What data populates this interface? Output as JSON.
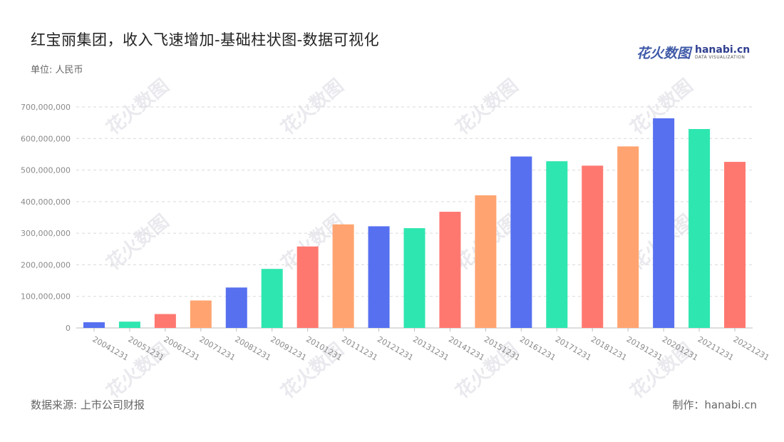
{
  "title": "红宝丽集团，收入飞速增加-基础柱状图-数据可视化",
  "unit_label": "单位: 人民币",
  "logo": {
    "cn": "花火数图",
    "en": "hanabi.cn",
    "sub": "DATA VISUALIZATION"
  },
  "footer": {
    "source": "数据来源: 上市公司财报",
    "maker": "制作：hanabi.cn"
  },
  "watermark": "花火数图",
  "colors": [
    "#5670f0",
    "#2ee6b0",
    "#ff7870",
    "#ffa470"
  ],
  "chart_data": {
    "type": "bar",
    "categories": [
      "20041231",
      "20051231",
      "20061231",
      "20071231",
      "20081231",
      "20091231",
      "20101231",
      "20111231",
      "20121231",
      "20131231",
      "20141231",
      "20151231",
      "20161231",
      "20171231",
      "20181231",
      "20191231",
      "20201231",
      "20211231",
      "20221231"
    ],
    "values": [
      18000000,
      20000000,
      44000000,
      87000000,
      128000000,
      187000000,
      258000000,
      328000000,
      322000000,
      316000000,
      368000000,
      420000000,
      543000000,
      528000000,
      514000000,
      575000000,
      664000000,
      630000000,
      526000000
    ],
    "yticks": [
      "0",
      "100,000,000",
      "200,000,000",
      "300,000,000",
      "400,000,000",
      "500,000,000",
      "600,000,000",
      "700,000,000"
    ],
    "ylim": [
      0,
      700000000
    ],
    "grid": true
  }
}
